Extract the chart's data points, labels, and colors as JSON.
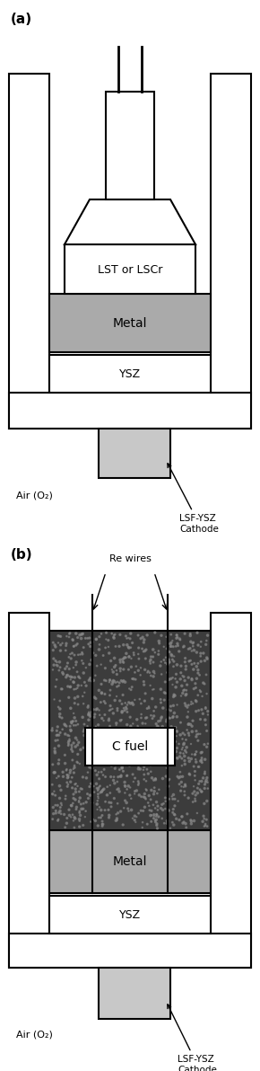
{
  "fig_width": 2.9,
  "fig_height": 11.92,
  "bg_color": "#ffffff",
  "line_color": "#000000",
  "lw": 1.5,
  "gray_metal": "#aaaaaa",
  "gray_cathode": "#c8c8c8",
  "dark_carbon": "#3c3c3c",
  "panel_a_label": "(a)",
  "panel_b_label": "(b)",
  "label_lst": "LST or LSCr",
  "label_metal_a": "Metal",
  "label_ysz_a": "YSZ",
  "label_air_a": "Air (O₂)",
  "label_cathode_a": "LSF-YSZ\nCathode",
  "label_rewires": "Re wires",
  "label_cfuel": "C fuel",
  "label_metal_b": "Metal",
  "label_ysz_b": "YSZ",
  "label_air_b": "Air (O₂)",
  "label_cathode_b": "LSF-YSZ\nCathode"
}
